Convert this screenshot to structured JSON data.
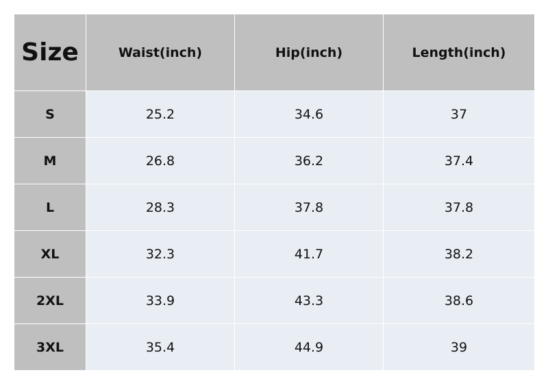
{
  "table": {
    "header": [
      "Size",
      "Waist(inch)",
      "Hip(inch)",
      "Length(inch)"
    ],
    "rows": [
      [
        "S",
        "25.2",
        "34.6",
        "37"
      ],
      [
        "M",
        "26.8",
        "36.2",
        "37.4"
      ],
      [
        "L",
        "28.3",
        "37.8",
        "37.8"
      ],
      [
        "XL",
        "32.3",
        "41.7",
        "38.2"
      ],
      [
        "2XL",
        "33.9",
        "43.3",
        "38.6"
      ],
      [
        "3XL",
        "35.4",
        "44.9",
        "39"
      ]
    ]
  }
}
